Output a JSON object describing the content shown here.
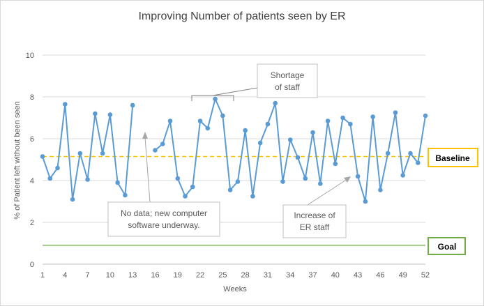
{
  "chart_data": {
    "type": "line",
    "title": "Improving Number of patients seen by ER",
    "xlabel": "Weeks",
    "ylabel": "% of Patient left without been seen",
    "ylim": [
      0,
      11
    ],
    "xlim": [
      1,
      52
    ],
    "y_ticks": [
      0,
      2,
      4,
      6,
      8,
      10
    ],
    "x_ticks": [
      1,
      4,
      7,
      10,
      13,
      16,
      19,
      22,
      25,
      28,
      31,
      34,
      37,
      40,
      43,
      46,
      49,
      52
    ],
    "grid": true,
    "series": [
      {
        "color": "#5b9bd5",
        "segments": [
          {
            "x": [
              1,
              2,
              3,
              4,
              5,
              6,
              7,
              8,
              9,
              10,
              11,
              12,
              13
            ],
            "y": [
              5.15,
              4.1,
              4.6,
              7.65,
              3.1,
              5.3,
              4.05,
              7.2,
              5.3,
              7.15,
              3.9,
              3.3,
              7.6
            ]
          },
          {
            "x": [
              16,
              17,
              18,
              19,
              20,
              21,
              22,
              23,
              24,
              25,
              26,
              27,
              28,
              29,
              30,
              31,
              32,
              33,
              34,
              35,
              36,
              37,
              38,
              39,
              40,
              41,
              42,
              43,
              44,
              45,
              46,
              47,
              48,
              49,
              50,
              51,
              52
            ],
            "y": [
              5.45,
              5.75,
              6.85,
              4.1,
              3.25,
              3.7,
              6.85,
              6.5,
              7.9,
              7.1,
              3.55,
              3.95,
              6.4,
              3.25,
              5.8,
              6.7,
              7.7,
              3.95,
              5.95,
              5.1,
              4.1,
              6.3,
              3.85,
              6.85,
              4.8,
              7.0,
              6.7,
              4.2,
              3.0,
              7.05,
              3.55,
              5.3,
              7.25,
              4.25,
              5.3,
              4.85,
              7.1
            ]
          }
        ]
      }
    ],
    "reference_lines": [
      {
        "label": "Baseline",
        "y": 5.15,
        "color": "#ffc000",
        "style": "dashed"
      },
      {
        "label": "Goal",
        "y": 0.9,
        "color": "#70ad47",
        "style": "solid"
      }
    ],
    "annotations": [
      {
        "id": "shortage",
        "lines": [
          "Shortage",
          "of staff"
        ]
      },
      {
        "id": "nodata",
        "lines": [
          "No data; new computer",
          "software underway."
        ]
      },
      {
        "id": "increase",
        "lines": [
          "Increase of",
          "ER staff"
        ]
      }
    ]
  }
}
